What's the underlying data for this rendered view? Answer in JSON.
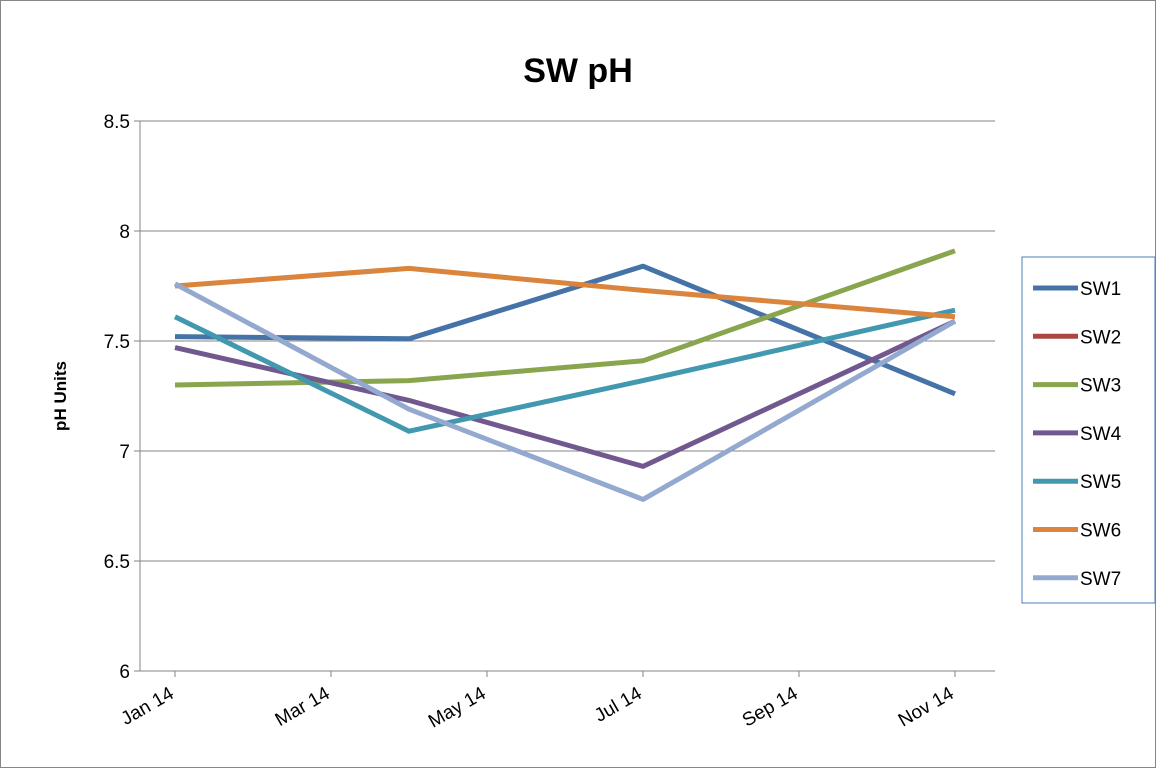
{
  "chart_data": {
    "type": "line",
    "title": "SW pH",
    "y_label": "pH Units",
    "x": [
      "2014-01",
      "2014-04",
      "2014-07",
      "2014-11"
    ],
    "xlim": [
      "2014-01",
      "2014-11"
    ],
    "xticks": [
      {
        "value": "2014-01",
        "label": "Jan 14"
      },
      {
        "value": "2014-03",
        "label": "Mar 14"
      },
      {
        "value": "2014-05",
        "label": "May 14"
      },
      {
        "value": "2014-07",
        "label": "Jul 14"
      },
      {
        "value": "2014-09",
        "label": "Sep 14"
      },
      {
        "value": "2014-11",
        "label": "Nov 14"
      }
    ],
    "ylim": [
      6,
      8.5
    ],
    "yticks": [
      6,
      6.5,
      7,
      7.5,
      8,
      8.5
    ],
    "grid": true,
    "legend": "right",
    "series": [
      {
        "name": "SW1",
        "color": "#4572a7",
        "values": [
          7.52,
          7.51,
          7.84,
          7.26
        ]
      },
      {
        "name": "SW2",
        "color": "#aa4643",
        "values": [
          null,
          null,
          null,
          null
        ]
      },
      {
        "name": "SW3",
        "color": "#89a54e",
        "values": [
          7.3,
          7.32,
          7.41,
          7.91
        ]
      },
      {
        "name": "SW4",
        "color": "#71588f",
        "values": [
          7.47,
          7.23,
          6.93,
          7.59
        ]
      },
      {
        "name": "SW5",
        "color": "#4198af",
        "values": [
          7.61,
          7.09,
          7.32,
          7.64
        ]
      },
      {
        "name": "SW6",
        "color": "#db843d",
        "values": [
          7.75,
          7.83,
          7.73,
          7.61
        ]
      },
      {
        "name": "SW7",
        "color": "#93a9cf",
        "values": [
          7.76,
          7.19,
          6.78,
          7.59
        ]
      }
    ]
  }
}
